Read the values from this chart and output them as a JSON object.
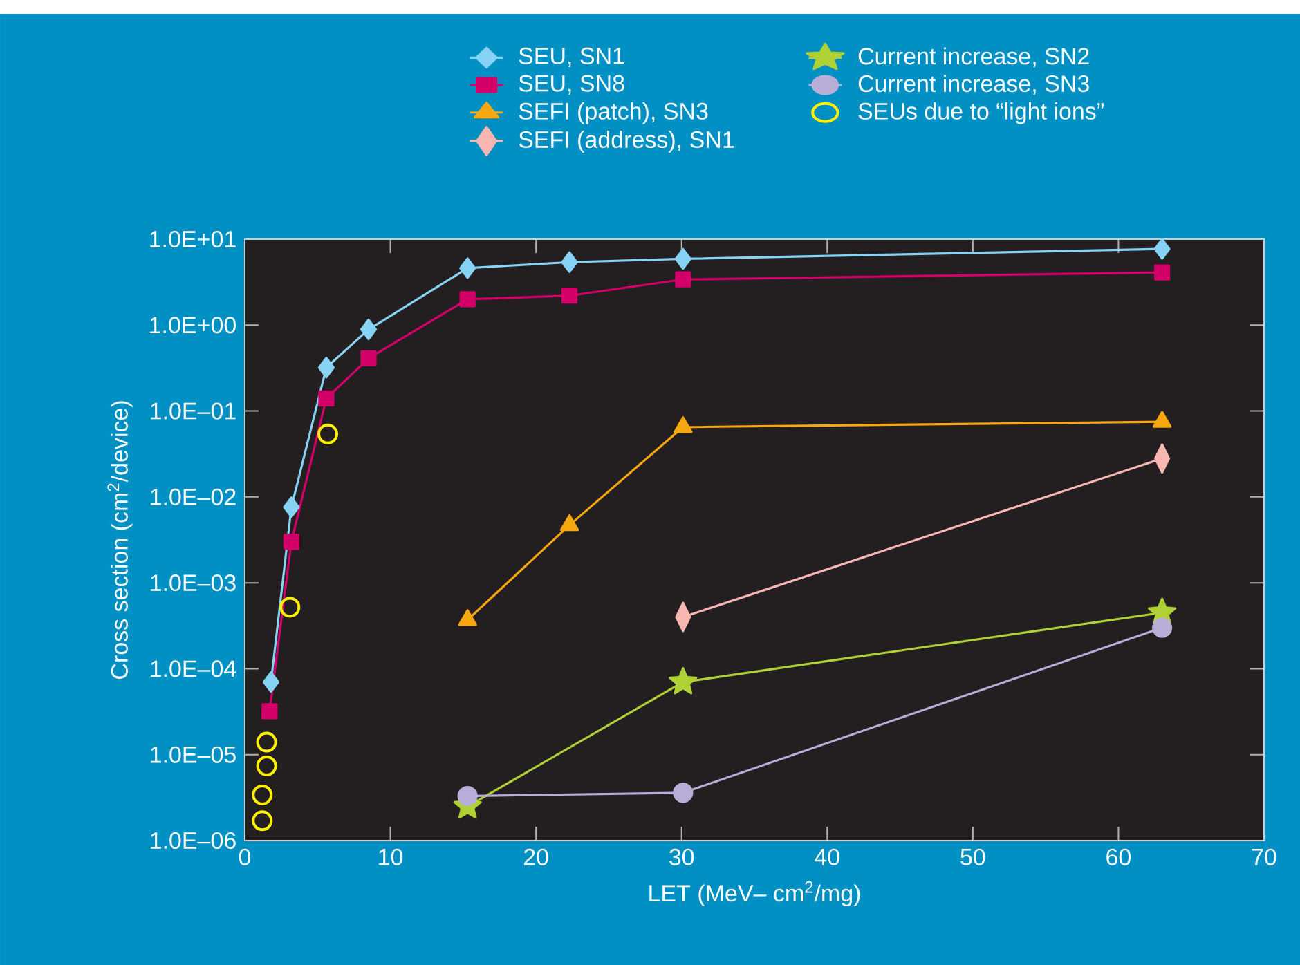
{
  "chart_data": {
    "type": "line",
    "xlabel": "LET (MeV– cm$^{2}$/mg)",
    "ylabel": "Cross section (cm$^{2}$/device)",
    "log": "y",
    "xlim": [
      0,
      70
    ],
    "xticks": [
      0,
      10,
      20,
      30,
      40,
      50,
      60,
      70
    ],
    "ylim": [
      1e-06,
      10
    ],
    "yticks": [
      {
        "value": 1e-06,
        "label": "1.0E–06"
      },
      {
        "value": 1e-05,
        "label": "1.0E–05"
      },
      {
        "value": 0.0001,
        "label": "1.0E–04"
      },
      {
        "value": 0.001,
        "label": "1.0E–03"
      },
      {
        "value": 0.01,
        "label": "1.0E–02"
      },
      {
        "value": 0.1,
        "label": "1.0E–01"
      },
      {
        "value": 1,
        "label": "1.0E+00"
      },
      {
        "value": 10,
        "label": "1.0E+01"
      }
    ],
    "grid": false,
    "legend": "top",
    "series": [
      {
        "name": "SEU, SN1",
        "color": "#87d3f5",
        "marker": "diamond",
        "x": [
          1.8,
          3.2,
          5.6,
          8.5,
          15.3,
          22.3,
          30.1,
          63
        ],
        "values": [
          7e-05,
          0.0076,
          0.32,
          0.89,
          4.6,
          5.4,
          5.9,
          7.7
        ]
      },
      {
        "name": "SEU, SN8",
        "color": "#d4006a",
        "marker": "square",
        "x": [
          1.7,
          3.2,
          5.6,
          8.5,
          15.3,
          22.3,
          30.1,
          63
        ],
        "values": [
          3.2e-05,
          0.003,
          0.14,
          0.41,
          2.0,
          2.2,
          3.4,
          4.1
        ]
      },
      {
        "name": "SEFI (patch), SN3",
        "color": "#f7a70f",
        "marker": "triangle",
        "x": [
          15.3,
          22.3,
          30.1,
          63
        ],
        "values": [
          0.00037,
          0.0047,
          0.065,
          0.075
        ]
      },
      {
        "name": "SEFI (address), SN1",
        "color": "#f7b6b0",
        "marker": "diamond",
        "x": [
          30.1,
          63
        ],
        "values": [
          0.0004,
          0.028
        ]
      },
      {
        "name": "Current increase, SN2",
        "color": "#afd136",
        "marker": "star",
        "x": [
          15.3,
          30.1,
          63
        ],
        "values": [
          2.5e-06,
          7e-05,
          0.00045
        ]
      },
      {
        "name": "Current increase, SN3",
        "color": "#b8add6",
        "marker": "circle",
        "x": [
          15.3,
          30.1,
          63
        ],
        "values": [
          3.3e-06,
          3.6e-06,
          0.0003
        ]
      },
      {
        "name": "SEUs due to “light ions”",
        "color": "#fff000",
        "marker": "circle",
        "type": "scatter",
        "x": [
          5.7,
          3.1,
          1.5,
          1.5,
          1.2,
          1.2
        ],
        "values": [
          0.054,
          0.00052,
          1.4e-05,
          7.4e-06,
          3.4e-06,
          1.7e-06
        ]
      }
    ]
  }
}
